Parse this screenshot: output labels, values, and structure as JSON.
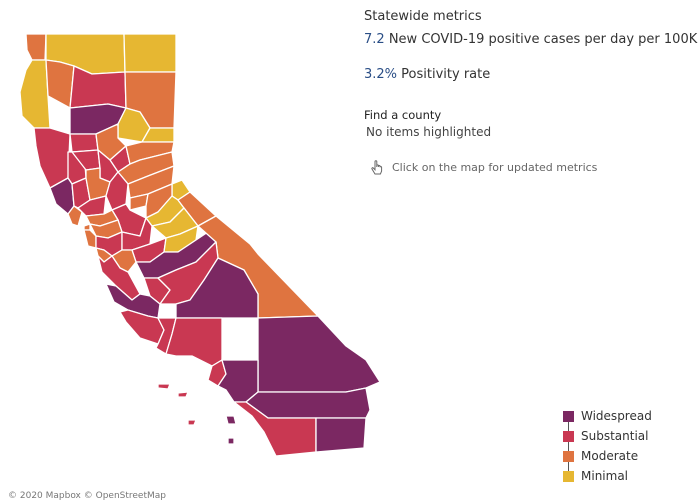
{
  "header": {
    "title": "Statewide metrics"
  },
  "metrics": {
    "cases_value": "7.2",
    "cases_label": "New COVID-19 positive cases per day per 100K",
    "positivity_value": "3.2%",
    "positivity_label": "Positivity rate"
  },
  "find": {
    "label": "Find a county",
    "status": "No items highlighted"
  },
  "hint": {
    "text": "Click on the map for updated metrics",
    "icon": "pointer-hand-icon"
  },
  "legend": {
    "items": [
      {
        "label": "Widespread",
        "color": "#7b2862"
      },
      {
        "label": "Substantial",
        "color": "#c93852"
      },
      {
        "label": "Moderate",
        "color": "#df7440"
      },
      {
        "label": "Minimal",
        "color": "#e6b732"
      }
    ]
  },
  "map": {
    "attribution": "© 2020 Mapbox © OpenStreetMap"
  }
}
